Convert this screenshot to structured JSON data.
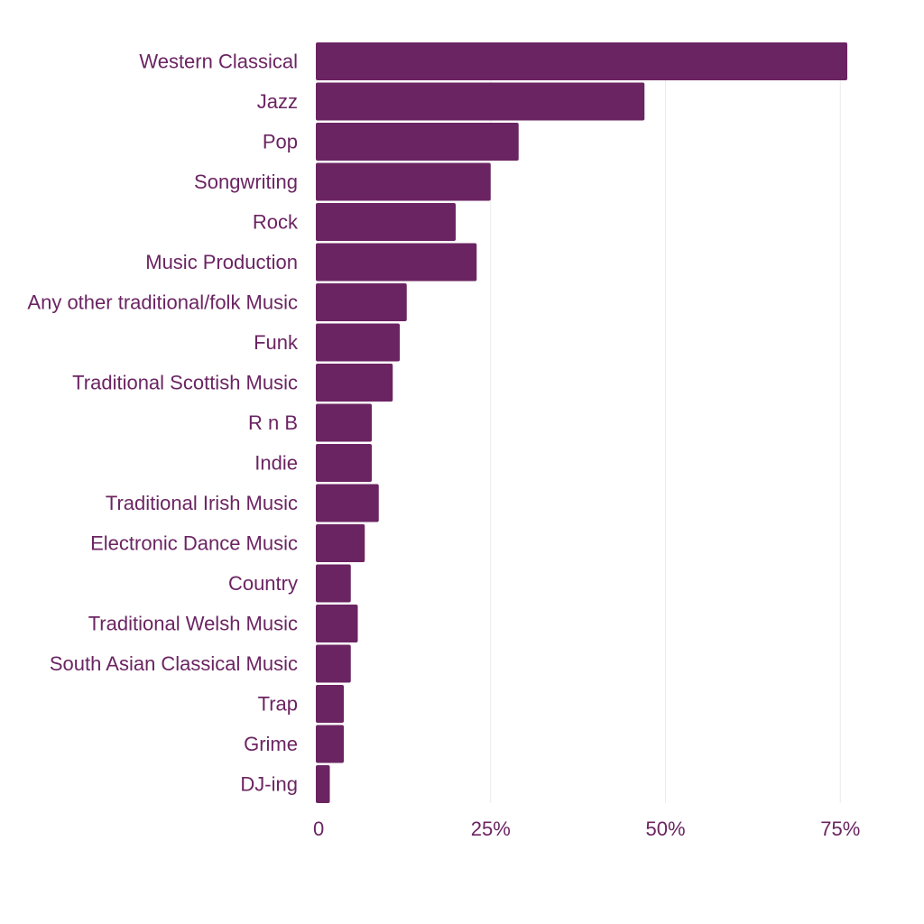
{
  "colors": {
    "bar": "#6b2462",
    "text": "#6b2462",
    "grid": "#ececec",
    "background": "#ffffff"
  },
  "chart_data": {
    "type": "bar",
    "orientation": "horizontal",
    "categories": [
      "Western Classical",
      "Jazz",
      "Pop",
      "Songwriting",
      "Rock",
      "Music Production",
      "Any other traditional/folk Music",
      "Funk",
      "Traditional Scottish Music",
      "R n B",
      "Indie",
      "Traditional Irish Music",
      "Electronic Dance Music",
      "Country",
      "Traditional Welsh Music",
      "South Asian Classical Music",
      "Trap",
      "Grime",
      "DJ-ing"
    ],
    "values": [
      76,
      47,
      29,
      25,
      20,
      23,
      13,
      12,
      11,
      8,
      8,
      9,
      7,
      5,
      6,
      5,
      4,
      4,
      2
    ],
    "xlim": [
      0,
      80
    ],
    "xticks": [
      0,
      25,
      50,
      75
    ],
    "xtick_labels": [
      "0",
      "25%",
      "50%",
      "75%"
    ],
    "grid": "vertical",
    "legend": "none"
  }
}
